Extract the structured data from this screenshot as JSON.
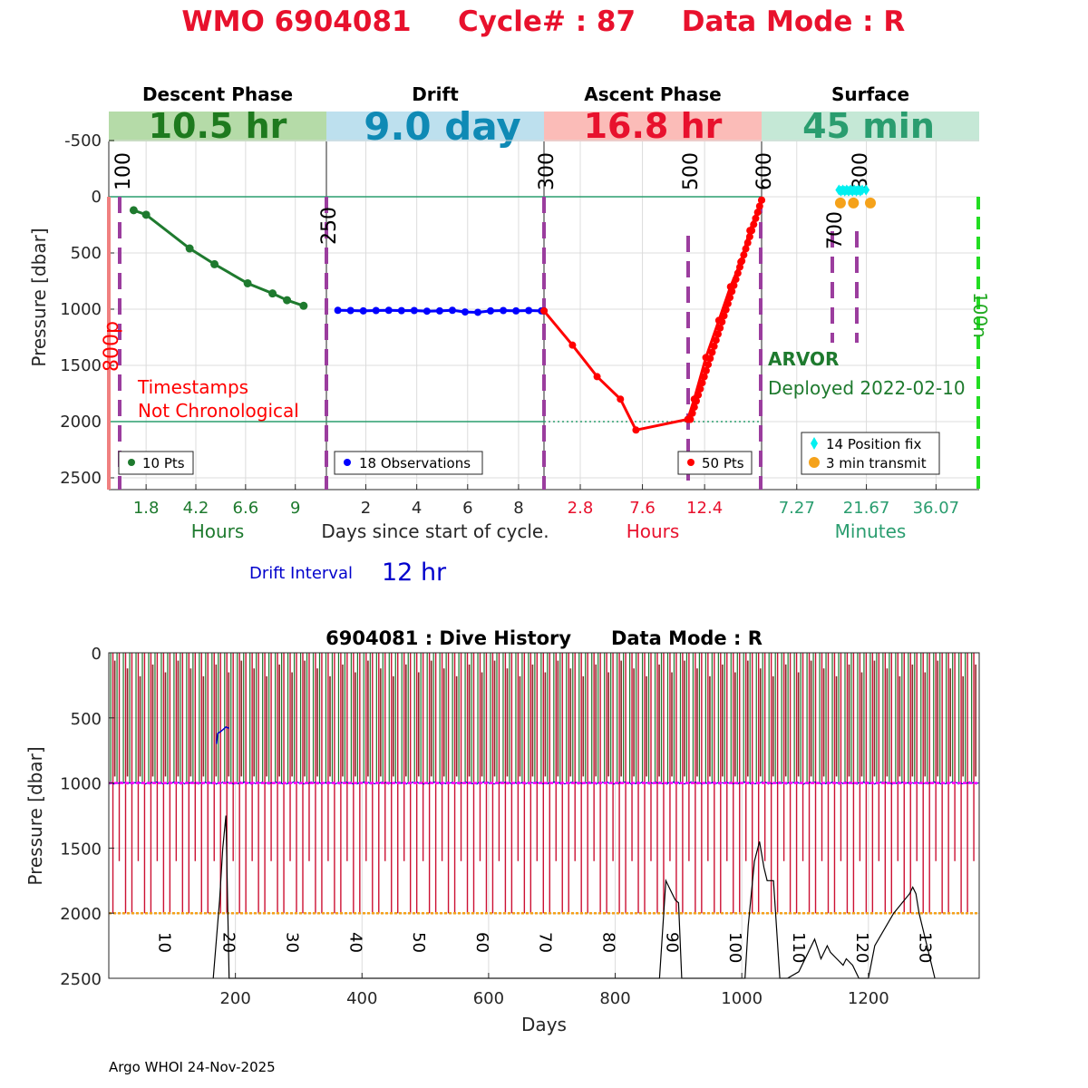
{
  "title": {
    "wmo_label": "WMO 6904081",
    "cycle_label": "Cycle# : 87",
    "mode_label": "Data Mode : R",
    "color": "#e8112d"
  },
  "phases": [
    {
      "name": "Descent Phase",
      "duration": "10.5 hr",
      "bar_color": "#b5dba8",
      "text_color": "#1e7a1e"
    },
    {
      "name": "Drift",
      "duration": "9.0 day",
      "bar_color": "#bde0ee",
      "text_color": "#0f8ab5"
    },
    {
      "name": "Ascent Phase",
      "duration": "16.8 hr",
      "bar_color": "#fbbcb8",
      "text_color": "#e8112d"
    },
    {
      "name": "Surface",
      "duration": "45 min",
      "bar_color": "#c5e8d6",
      "text_color": "#2a9d6f"
    }
  ],
  "top_axis": {
    "ylabel": "Pressure [dbar]",
    "yticks": [
      -500,
      0,
      500,
      1000,
      1500,
      2000,
      2500
    ],
    "ylim": [
      -720,
      2600
    ],
    "ref_lines": [
      0,
      2000
    ],
    "xlabels": [
      "Hours",
      "Days since start of cycle.",
      "Hours",
      "Minutes"
    ],
    "xticks": [
      [
        "1.8",
        "4.2",
        "6.6",
        "9"
      ],
      [
        "2",
        "4",
        "6",
        "8"
      ],
      [
        "2.8",
        "7.6",
        "12.4"
      ],
      [
        "7.27",
        "21.67",
        "36.07"
      ]
    ]
  },
  "marker_labels": {
    "m100": "100",
    "m250": "250",
    "m300": "300",
    "m500": "500",
    "m600": "600",
    "m700": "700",
    "m800": "800",
    "p800": "800p",
    "n100": "100n"
  },
  "annotations": {
    "timestamps_line1": "Timestamps",
    "timestamps_line2": "Not Chronological",
    "float_type": "ARVOR",
    "deployed": "Deployed 2022-02-10",
    "drift_interval_label": "Drift Interval",
    "drift_interval_value": "12 hr"
  },
  "legends": {
    "descent": "10 Pts",
    "drift": "18 Observations",
    "ascent": "50 Pts",
    "position_fix": "14 Position fix",
    "transmit": "3 min transmit"
  },
  "colors": {
    "descent": "#1e7a2e",
    "drift": "#0000ff",
    "ascent": "#ff0000",
    "marker": "#9b3d9e",
    "ref_line": "#2a9d6f",
    "position_fix": "#00f0f0",
    "transmit": "#f5a21a",
    "surface_line": "#22dd22",
    "salmon": "#f08080"
  },
  "chart_data": [
    {
      "type": "line",
      "title": "Descent Phase",
      "xlabel": "Hours",
      "xlim": [
        0,
        10.5
      ],
      "x": [
        1.2,
        1.8,
        3.9,
        5.1,
        6.7,
        7.9,
        8.6,
        9.4
      ],
      "y": [
        120,
        160,
        460,
        600,
        770,
        860,
        920,
        970
      ]
    },
    {
      "type": "line",
      "title": "Drift",
      "xlabel": "Days since start of cycle.",
      "xlim": [
        0.45,
        9.0
      ],
      "x": [
        0.9,
        1.4,
        1.9,
        2.4,
        2.9,
        3.4,
        3.9,
        4.4,
        4.9,
        5.4,
        5.9,
        6.4,
        6.9,
        7.4,
        7.9,
        8.4,
        8.9,
        9.0
      ],
      "y": [
        1010,
        1012,
        1015,
        1012,
        1010,
        1013,
        1012,
        1018,
        1015,
        1010,
        1025,
        1028,
        1015,
        1012,
        1015,
        1012,
        1015,
        1015
      ]
    },
    {
      "type": "line",
      "title": "Ascent Phase",
      "xlabel": "Hours",
      "xlim": [
        0,
        16.8
      ],
      "x": [
        0,
        2.2,
        4.1,
        5.9,
        7.1,
        11.1,
        11.6,
        12.5,
        13.5,
        14.4,
        15.2,
        15.9,
        16.8
      ],
      "y": [
        1015,
        1320,
        1600,
        1800,
        2075,
        1980,
        1800,
        1430,
        1100,
        800,
        580,
        300,
        30
      ]
    },
    {
      "type": "scatter",
      "title": "Surface",
      "xlabel": "Minutes",
      "xlim": [
        0,
        45
      ],
      "series": [
        {
          "name": "14 Position fix",
          "x": [
            16,
            16.8,
            17.6,
            18.4,
            19.2,
            20,
            20.8,
            21.6,
            16.4,
            17.2,
            18,
            18.8,
            19.6,
            20.4
          ],
          "y": [
            -60,
            -60,
            -60,
            -60,
            -60,
            -60,
            -60,
            -60,
            -50,
            -50,
            -50,
            -50,
            -50,
            -50
          ]
        },
        {
          "name": "3 min transmit",
          "x": [
            16.3,
            19,
            22.5
          ],
          "y": [
            55,
            55,
            55
          ]
        }
      ]
    },
    {
      "type": "line",
      "title": "6904081 : Dive History      Data Mode : R",
      "xlabel": "Days",
      "ylabel": "Pressure [dbar]",
      "xlim": [
        0,
        1375
      ],
      "ylim": [
        0,
        2500
      ],
      "xticks": [
        200,
        400,
        600,
        800,
        1000,
        1200
      ],
      "yticks": [
        0,
        500,
        1000,
        1500,
        2000,
        2500
      ],
      "cycle_labels": [
        "10",
        "20",
        "30",
        "40",
        "50",
        "60",
        "70",
        "80",
        "90",
        "100",
        "110",
        "120",
        "130"
      ],
      "cycle_label_days": [
        88,
        190,
        290,
        390,
        490,
        590,
        690,
        790,
        890,
        990,
        1090,
        1190,
        1290
      ],
      "cycle_count": 137,
      "cycle_interval_days": 10,
      "drift_pressure": 1000,
      "profile_pressure": 2000,
      "black_trace": {
        "x": [
          165,
          175,
          180,
          185,
          190,
          235,
          870,
          880,
          890,
          895,
          900,
          905,
          935,
          940,
          1005,
          1010,
          1020,
          1028,
          1035,
          1040,
          1050,
          1060,
          1072,
          1090,
          1100,
          1115,
          1125,
          1135,
          1140,
          1150,
          1160,
          1165,
          1175,
          1185,
          1200,
          1210,
          1240,
          1265,
          1270,
          1275,
          1280,
          1305
        ],
        "y": [
          2500,
          1900,
          1500,
          1250,
          2500,
          2500,
          2500,
          1750,
          1850,
          1900,
          1920,
          2500,
          2500,
          2500,
          2500,
          2100,
          1600,
          1450,
          1650,
          1750,
          1750,
          2500,
          2500,
          2450,
          2350,
          2200,
          2350,
          2250,
          2300,
          2350,
          2400,
          2350,
          2400,
          2500,
          2500,
          2250,
          2000,
          1850,
          1800,
          1850,
          2000,
          2500
        ]
      }
    }
  ],
  "footer": "Argo WHOI 24-Nov-2025"
}
